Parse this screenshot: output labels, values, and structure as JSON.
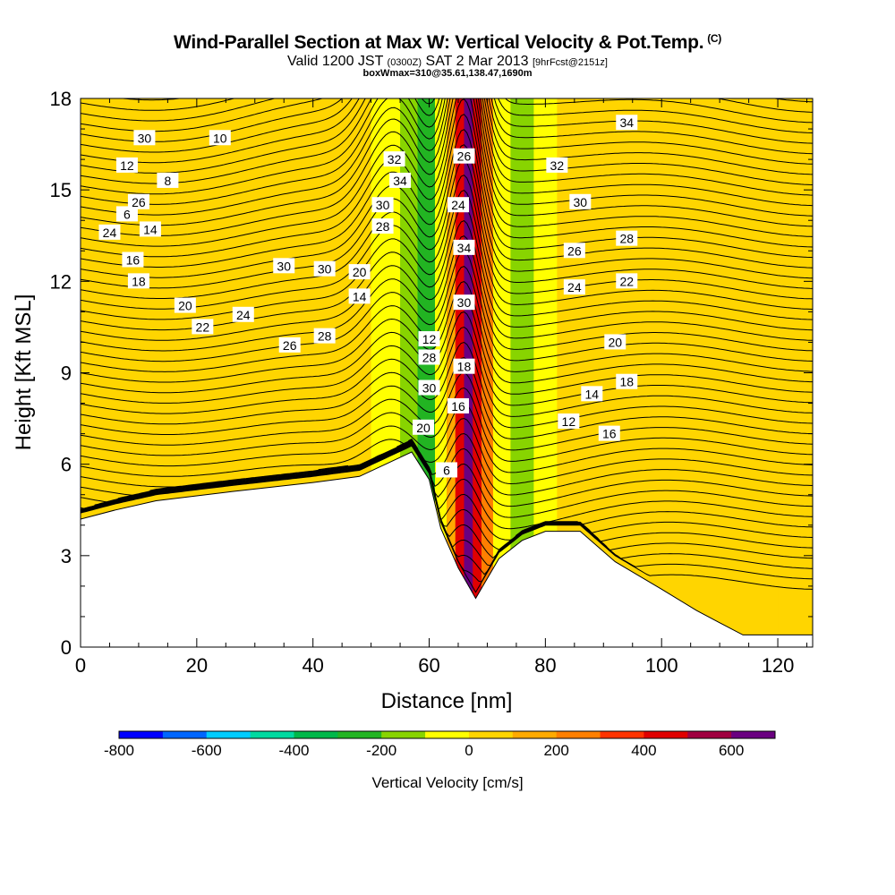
{
  "header": {
    "title": "Wind-Parallel Section at Max W: Vertical Velocity & Pot.Temp.",
    "title_mark": "(C)",
    "valid_prefix": "Valid 1200 JST",
    "valid_utc": "(0300Z)",
    "valid_date": "SAT 2 Mar 2013",
    "forecast_note": "[9hrFcst@2151z]",
    "box_info": "boxWmax=310@35.61,138.47,1690m"
  },
  "chart_data": {
    "type": "heatmap",
    "xlabel": "Distance [nm]",
    "ylabel": "Height [Kft MSL]",
    "xlim": [
      0,
      126
    ],
    "ylim": [
      0,
      18
    ],
    "x_ticks": [
      "0",
      "20",
      "40",
      "60",
      "80",
      "100",
      "120"
    ],
    "y_ticks": [
      "0",
      "3",
      "6",
      "9",
      "12",
      "15",
      "18"
    ],
    "colorbar": {
      "title": "Vertical Velocity [cm/s]",
      "levels": [
        -800,
        -700,
        -600,
        -500,
        -400,
        -300,
        -200,
        -100,
        0,
        100,
        200,
        300,
        400,
        500,
        600,
        700
      ],
      "labels": [
        "-800",
        "-600",
        "-400",
        "-200",
        "0",
        "200",
        "400",
        "600"
      ],
      "colors": [
        "#0000ff",
        "#0066ff",
        "#00ccff",
        "#00d9a0",
        "#00b84a",
        "#22b422",
        "#88d400",
        "#ffff00",
        "#ffd500",
        "#ffaa00",
        "#ff7f00",
        "#ff3300",
        "#e00000",
        "#a00040",
        "#6a0080"
      ]
    },
    "terrain_kft": [
      [
        0,
        4.2
      ],
      [
        6,
        4.5
      ],
      [
        13,
        4.8
      ],
      [
        26,
        5.1
      ],
      [
        40,
        5.4
      ],
      [
        48,
        5.6
      ],
      [
        57,
        6.4
      ],
      [
        60,
        5.5
      ],
      [
        62,
        3.9
      ],
      [
        65,
        2.6
      ],
      [
        68,
        1.6
      ],
      [
        72,
        2.9
      ],
      [
        76,
        3.5
      ],
      [
        80,
        3.8
      ],
      [
        86,
        3.8
      ],
      [
        92,
        2.8
      ],
      [
        100,
        1.9
      ],
      [
        106,
        1.2
      ],
      [
        110,
        0.8
      ],
      [
        114,
        0.4
      ],
      [
        126,
        0.4
      ]
    ],
    "vertical_velocity_cm_s": {
      "columns_x": [
        0,
        5,
        12,
        18,
        24,
        30,
        34,
        38,
        42,
        46,
        50,
        55,
        58,
        61,
        63,
        64.5,
        66,
        67.5,
        69,
        71,
        74,
        78,
        82,
        86,
        90,
        96,
        102,
        108,
        114,
        120,
        126
      ],
      "values": [
        0,
        50,
        20,
        0,
        40,
        30,
        20,
        40,
        60,
        20,
        -80,
        -180,
        -250,
        -60,
        150,
        450,
        680,
        420,
        200,
        -80,
        -120,
        -60,
        30,
        50,
        70,
        60,
        40,
        60,
        80,
        40,
        30
      ]
    },
    "potential_temperature_contours_c": [
      "6",
      "8",
      "10",
      "12",
      "14",
      "16",
      "18",
      "20",
      "22",
      "24",
      "26",
      "28",
      "30",
      "32",
      "34"
    ]
  }
}
